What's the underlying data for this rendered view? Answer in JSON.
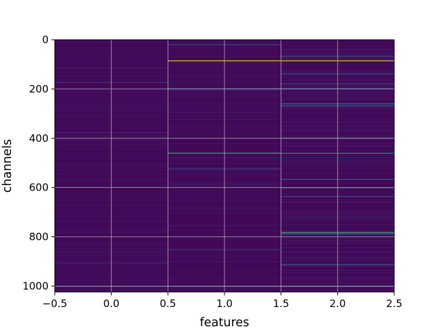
{
  "chart_data": {
    "type": "heatmap",
    "xlabel": "features",
    "ylabel": "channels",
    "xlim": [
      -0.5,
      2.5
    ],
    "ylim": [
      1024,
      0
    ],
    "x_ticks": [
      -0.5,
      0.0,
      0.5,
      1.0,
      1.5,
      2.0,
      2.5
    ],
    "x_tick_labels": [
      "−0.5",
      "0.0",
      "0.5",
      "1.0",
      "1.5",
      "2.0",
      "2.5"
    ],
    "y_ticks": [
      0,
      200,
      400,
      600,
      800,
      1000
    ],
    "y_tick_labels": [
      "0",
      "200",
      "400",
      "600",
      "800",
      "1000"
    ],
    "grid": true,
    "colormap": "viridis",
    "columns": [
      "0",
      "1",
      "2"
    ],
    "n_channels": 1024,
    "base_value": 0.02,
    "highlighted_cells": [
      {
        "feature": 0,
        "channel": 172,
        "value": 0.18
      },
      {
        "feature": 0,
        "channel": 375,
        "value": 0.12
      },
      {
        "feature": 0,
        "channel": 905,
        "value": 0.15
      },
      {
        "feature": 0,
        "channel": 1000,
        "value": 0.22
      },
      {
        "feature": 1,
        "channel": 18,
        "value": 0.25
      },
      {
        "feature": 1,
        "channel": 84,
        "value": 0.95
      },
      {
        "feature": 1,
        "channel": 197,
        "value": 0.3
      },
      {
        "feature": 1,
        "channel": 459,
        "value": 0.6
      },
      {
        "feature": 1,
        "channel": 522,
        "value": 0.2
      },
      {
        "feature": 1,
        "channel": 850,
        "value": 0.15
      },
      {
        "feature": 1,
        "channel": 1000,
        "value": 0.3
      },
      {
        "feature": 2,
        "channel": 65,
        "value": 0.3
      },
      {
        "feature": 2,
        "channel": 84,
        "value": 0.95
      },
      {
        "feature": 2,
        "channel": 137,
        "value": 0.3
      },
      {
        "feature": 2,
        "channel": 177,
        "value": 0.25
      },
      {
        "feature": 2,
        "channel": 197,
        "value": 0.3
      },
      {
        "feature": 2,
        "channel": 258,
        "value": 0.4
      },
      {
        "feature": 2,
        "channel": 266,
        "value": 0.35
      },
      {
        "feature": 2,
        "channel": 398,
        "value": 0.45
      },
      {
        "feature": 2,
        "channel": 459,
        "value": 0.5
      },
      {
        "feature": 2,
        "channel": 565,
        "value": 0.35
      },
      {
        "feature": 2,
        "channel": 600,
        "value": 0.25
      },
      {
        "feature": 2,
        "channel": 635,
        "value": 0.3
      },
      {
        "feature": 2,
        "channel": 781,
        "value": 0.65
      },
      {
        "feature": 2,
        "channel": 787,
        "value": 0.4
      },
      {
        "feature": 2,
        "channel": 912,
        "value": 0.3
      },
      {
        "feature": 2,
        "channel": 1000,
        "value": 0.35
      }
    ]
  }
}
